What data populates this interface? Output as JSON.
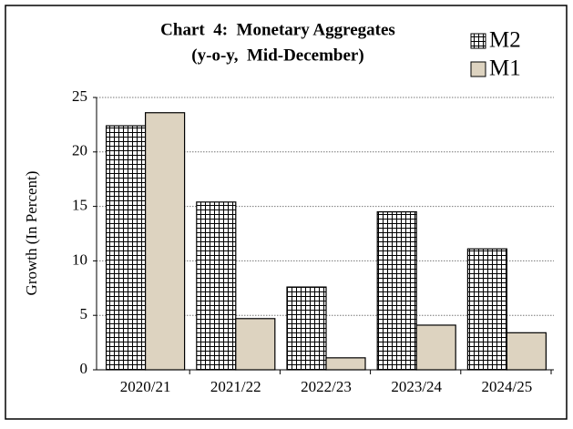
{
  "chart_data": {
    "type": "bar",
    "title": "Chart  4:  Monetary Aggregates",
    "subtitle": "(y-o-y,  Mid-December)",
    "y_label": "Growth (In Percent)",
    "categories": [
      "2020/21",
      "2021/22",
      "2022/23",
      "2023/24",
      "2024/25"
    ],
    "series": [
      {
        "name": "M2",
        "color": "#ffffff",
        "pattern": "grid",
        "values": [
          22.4,
          15.4,
          7.6,
          14.5,
          11.1
        ]
      },
      {
        "name": "M1",
        "color": "#ddd3c0",
        "pattern": "solid",
        "values": [
          23.6,
          4.7,
          1.1,
          4.1,
          3.4
        ]
      }
    ],
    "ylim": [
      0,
      25
    ],
    "yticks": [
      0,
      5,
      10,
      15,
      20,
      25
    ],
    "grid": true,
    "legend": "top-right"
  }
}
